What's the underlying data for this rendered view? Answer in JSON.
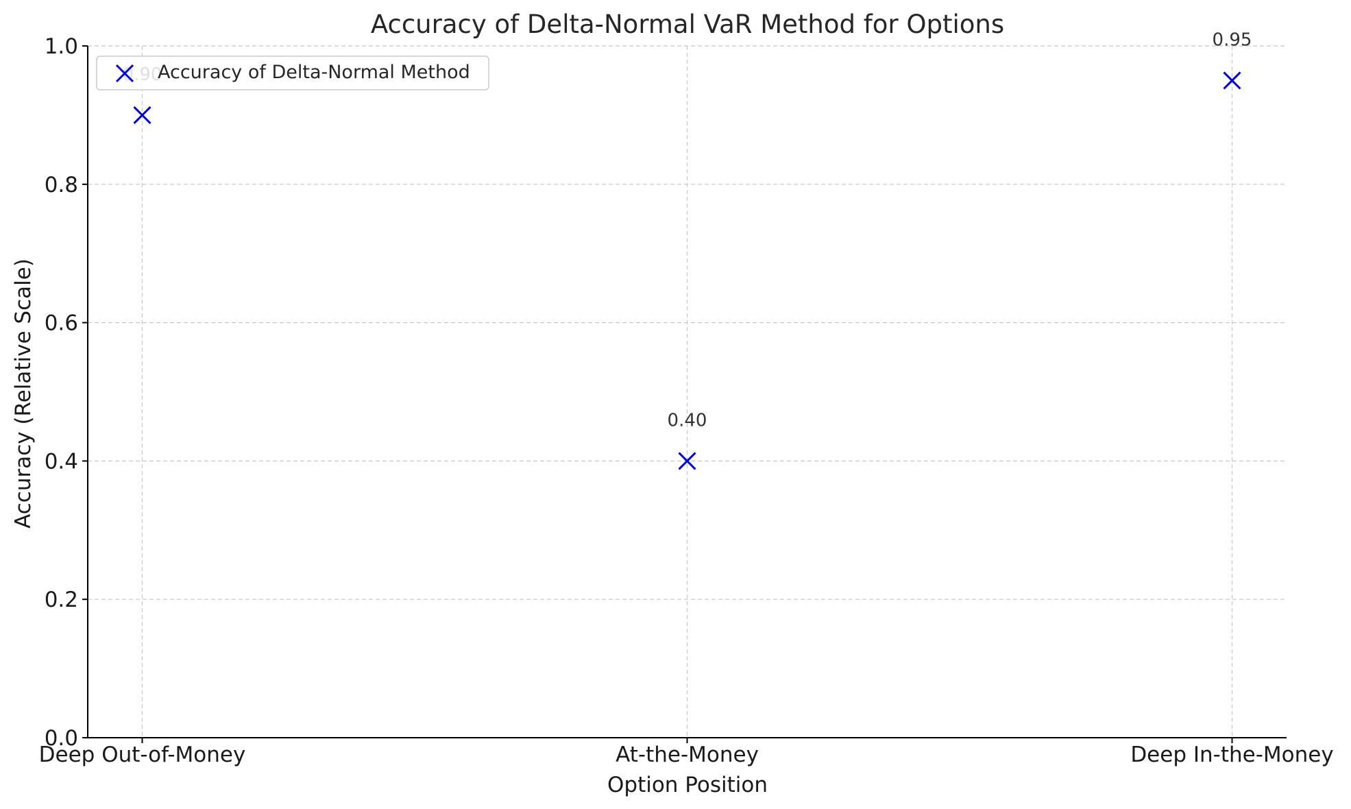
{
  "chart_data": {
    "type": "scatter",
    "title": "Accuracy of Delta-Normal VaR Method for Options",
    "xlabel": "Option Position",
    "ylabel": "Accuracy (Relative Scale)",
    "categories": [
      "Deep Out-of-Money",
      "At-the-Money",
      "Deep In-the-Money"
    ],
    "series": [
      {
        "name": "Accuracy of Delta-Normal Method",
        "values": [
          0.9,
          0.4,
          0.95
        ],
        "labels": [
          "0.90",
          "0.40",
          "0.95"
        ],
        "marker": "x",
        "color": "#0000dd"
      }
    ],
    "ylim": [
      0,
      1
    ],
    "yticks": [
      "0.0",
      "0.2",
      "0.4",
      "0.6",
      "0.8",
      "1.0"
    ],
    "grid": true,
    "legend_position": "top-left"
  }
}
